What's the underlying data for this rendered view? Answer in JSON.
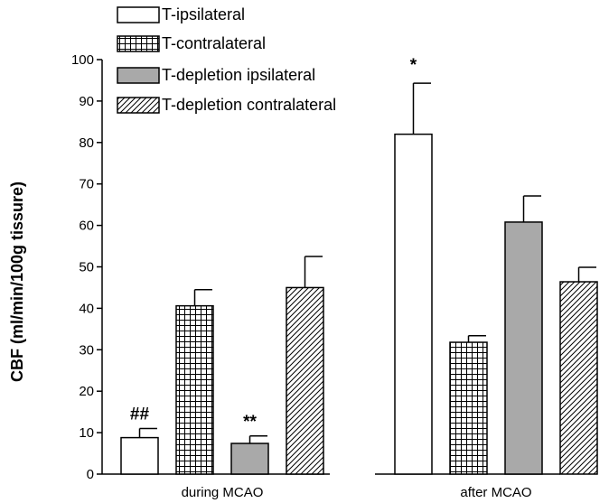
{
  "chart_data": {
    "type": "bar",
    "categories": [
      "during MCAO",
      "after MCAO"
    ],
    "series": [
      {
        "name": "T-ipsilateral",
        "fill": "white",
        "values": [
          8.8,
          82.0
        ],
        "errors": [
          2.2,
          12.3
        ]
      },
      {
        "name": "T-contralateral",
        "fill": "grid",
        "values": [
          40.6,
          31.8
        ],
        "errors": [
          3.9,
          1.6
        ]
      },
      {
        "name": "T-depletion ipsilateral",
        "fill": "gray",
        "values": [
          7.4,
          60.8
        ],
        "errors": [
          1.8,
          6.3
        ]
      },
      {
        "name": "T-depletion contralateral",
        "fill": "hatch",
        "values": [
          45.0,
          46.4
        ],
        "errors": [
          7.5,
          3.5
        ]
      }
    ],
    "annotations": [
      {
        "series": 0,
        "category": 0,
        "text": "##"
      },
      {
        "series": 2,
        "category": 0,
        "text": "**"
      },
      {
        "series": 0,
        "category": 1,
        "text": "*"
      }
    ],
    "ylabel": "CBF (ml/min/100g tissure)",
    "xlabel": "",
    "ylim": [
      0,
      100
    ],
    "yticks": [
      0,
      10,
      20,
      30,
      40,
      50,
      60,
      70,
      80,
      90,
      100
    ],
    "grid": false,
    "legend_position": "top-left",
    "colors": {
      "gray": "#a9a9a9",
      "line": "#000000",
      "background": "#ffffff"
    }
  }
}
